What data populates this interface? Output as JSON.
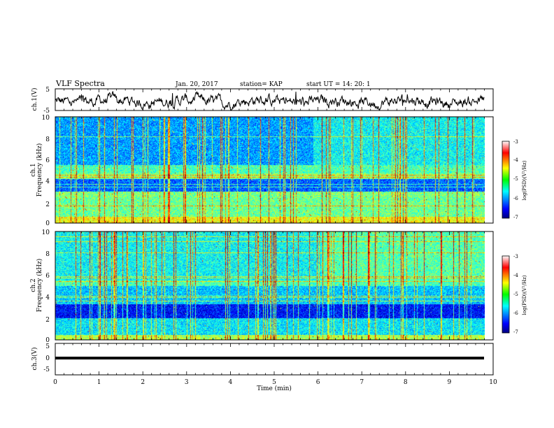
{
  "header": {
    "title": "VLF Spectra",
    "date": "Jan. 20, 2017",
    "station": "station= KAP",
    "start_ut": "start UT =   14: 20: 1"
  },
  "chart_data": [
    {
      "type": "line",
      "name": "ch1-waveform",
      "ylabel": "ch.1(V)",
      "ylim": [
        -5,
        5
      ],
      "y_ticks": [
        "5",
        "-5"
      ],
      "xlim": [
        0,
        10
      ]
    },
    {
      "type": "heatmap",
      "name": "ch1-spectrogram",
      "ylabel": "ch.1\nFrequency (kHz)",
      "ylabel_line1": "ch.1",
      "ylabel_line2": "Frequency (kHz)",
      "ylim": [
        0,
        10
      ],
      "y_ticks": [
        "0",
        "2",
        "4",
        "6",
        "8",
        "10"
      ],
      "colorbar": {
        "label": "log(PSD)(V²/Hz)",
        "range": [
          -7,
          -3
        ],
        "ticks": [
          "-3",
          "-4",
          "-5",
          "-6",
          "-7"
        ]
      }
    },
    {
      "type": "heatmap",
      "name": "ch2-spectrogram",
      "ylabel_line1": "ch.2",
      "ylabel_line2": "Frequency (kHz)",
      "ylim": [
        0,
        10
      ],
      "y_ticks": [
        "0",
        "2",
        "4",
        "6",
        "8",
        "10"
      ],
      "colorbar": {
        "label": "log(PSD)(V²/Hz)",
        "range": [
          -7,
          -3
        ],
        "ticks": [
          "-3",
          "-4",
          "-5",
          "-6",
          "-7"
        ]
      }
    },
    {
      "type": "line",
      "name": "ch3-waveform",
      "ylabel": "ch.3(V)",
      "ylim": [
        -5,
        5
      ],
      "y_ticks": [
        "5",
        "0",
        "-5"
      ],
      "y": [
        -1,
        -1
      ],
      "x": [
        0,
        9.8
      ]
    }
  ],
  "xaxis": {
    "label": "Time (min)",
    "ticks": [
      "0",
      "1",
      "2",
      "3",
      "4",
      "5",
      "6",
      "7",
      "8",
      "9",
      "10"
    ],
    "xlim": [
      0,
      10
    ]
  },
  "colors": {
    "jet": [
      "#000080",
      "#0000ff",
      "#00bfff",
      "#00ffff",
      "#7fff00",
      "#ffff00",
      "#ff0000",
      "#ffffff"
    ]
  }
}
